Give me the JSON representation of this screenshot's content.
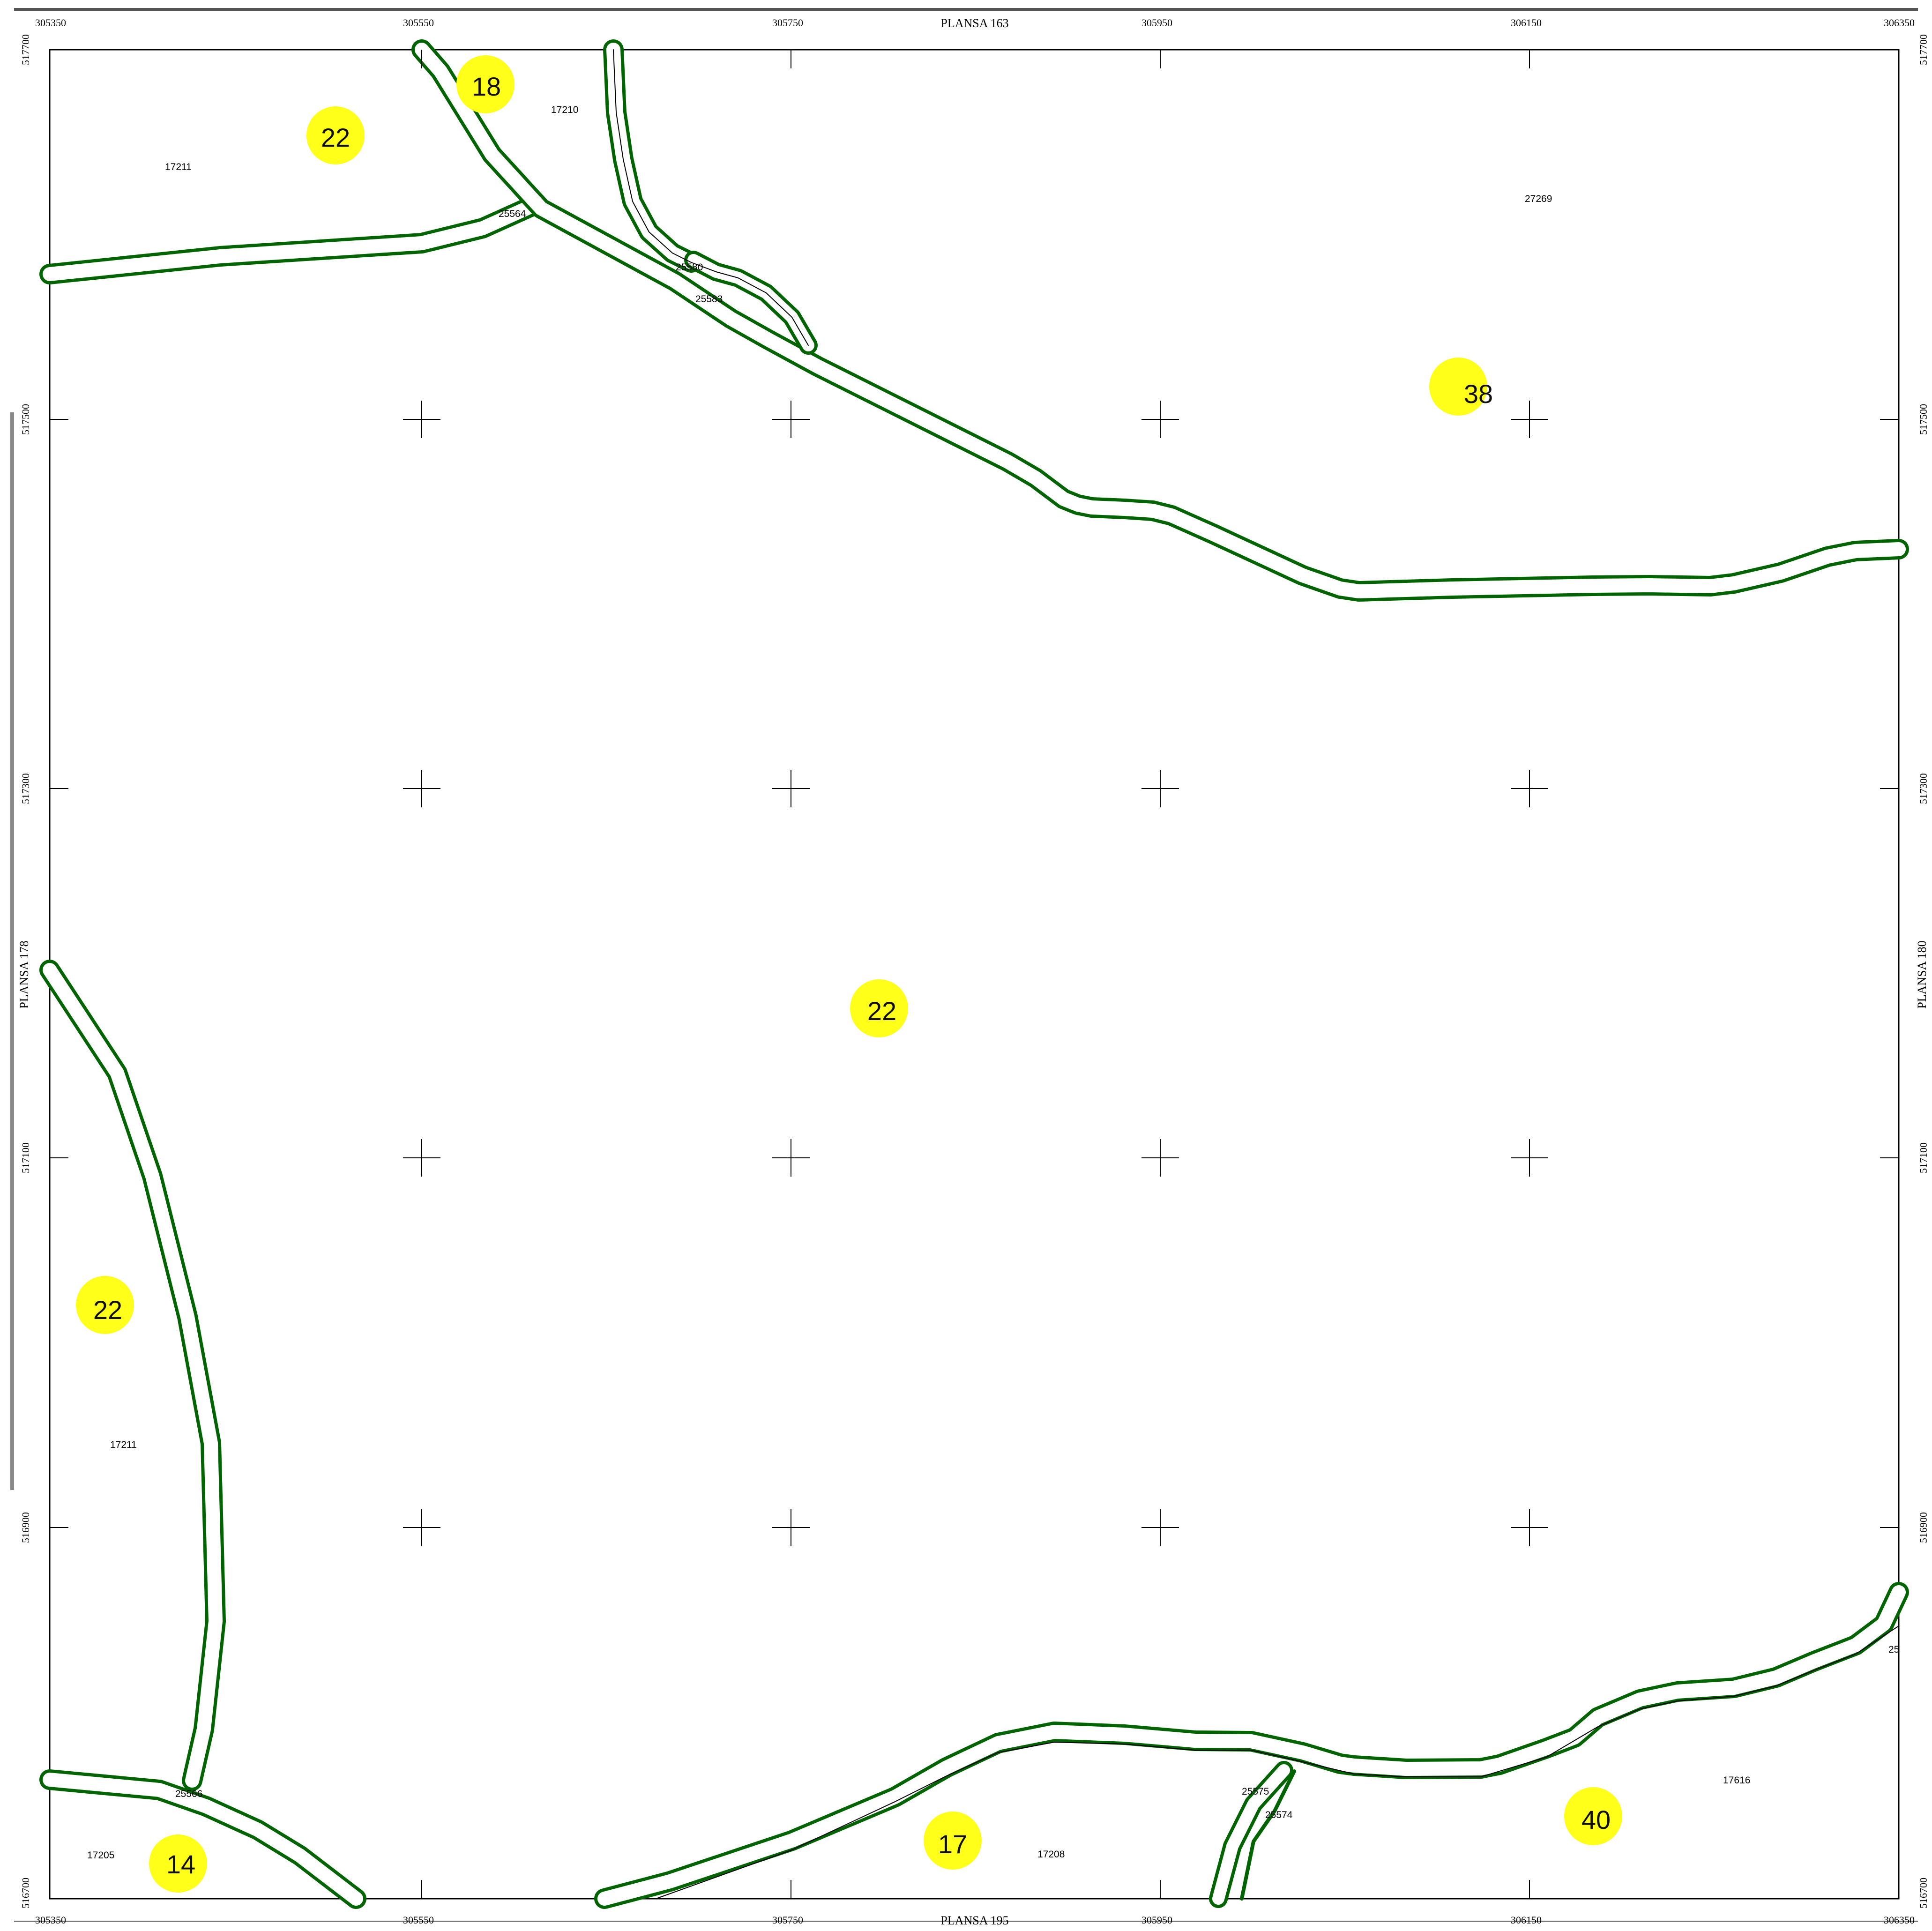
{
  "sheet": {
    "title_top": "PLANSA  163",
    "title_bottom": "PLANSA  195",
    "title_left": "PLANSA  178",
    "title_right": "PLANSA  180"
  },
  "coordinates": {
    "x_labels": [
      "305350",
      "305550",
      "305750",
      "305950",
      "306150",
      "306350"
    ],
    "y_labels": [
      "517700",
      "517500",
      "517300",
      "517100",
      "516900",
      "516700"
    ]
  },
  "parcels": [
    {
      "id": "p1",
      "label": "17211"
    },
    {
      "id": "p2",
      "label": "17210"
    },
    {
      "id": "p3",
      "label": "27269"
    },
    {
      "id": "p4",
      "label": "25564"
    },
    {
      "id": "p5",
      "label": "25580"
    },
    {
      "id": "p6",
      "label": "25583"
    },
    {
      "id": "p7",
      "label": "17211"
    },
    {
      "id": "p8",
      "label": "25566"
    },
    {
      "id": "p9",
      "label": "17205"
    },
    {
      "id": "p10",
      "label": "17208"
    },
    {
      "id": "p11",
      "label": "25575"
    },
    {
      "id": "p12",
      "label": "25574"
    },
    {
      "id": "p13",
      "label": "17616"
    },
    {
      "id": "p14",
      "label": "25"
    }
  ],
  "markers": [
    {
      "id": "m1",
      "value": "18"
    },
    {
      "id": "m2",
      "value": "22"
    },
    {
      "id": "m3",
      "value": "38"
    },
    {
      "id": "m4",
      "value": "22"
    },
    {
      "id": "m5",
      "value": "22"
    },
    {
      "id": "m6",
      "value": "14"
    },
    {
      "id": "m7",
      "value": "17"
    },
    {
      "id": "m8",
      "value": "40"
    }
  ],
  "colors": {
    "road_edge": "#006400",
    "marker_fill": "#ffff1a",
    "frame": "#000000"
  }
}
